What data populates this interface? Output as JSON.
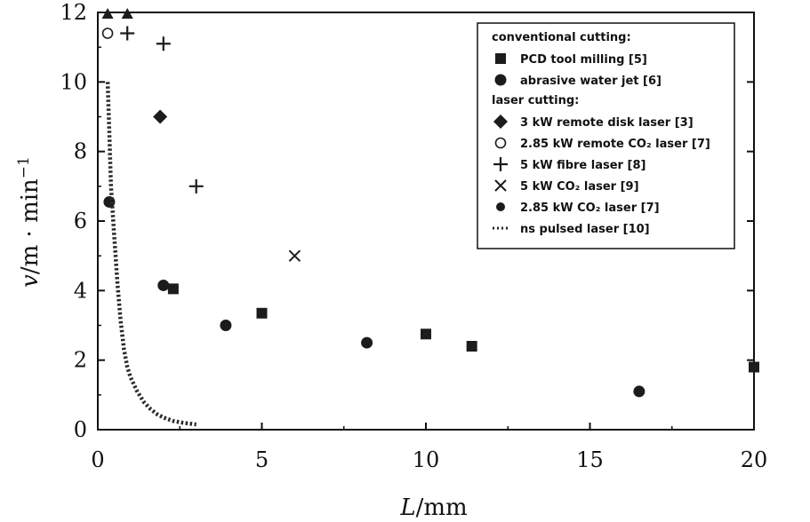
{
  "chart_data": {
    "type": "scatter",
    "xlabel_var": "L",
    "xlabel_unit": "/mm",
    "ylabel_var": "v",
    "ylabel_unit": "/m · min",
    "ylabel_exp": "−1",
    "xlim": [
      0,
      20
    ],
    "ylim": [
      0,
      12
    ],
    "x_ticks": [
      "0",
      "5",
      "10",
      "15",
      "20"
    ],
    "y_ticks": [
      "0",
      "2",
      "4",
      "6",
      "8",
      "10",
      "12"
    ],
    "grid": false,
    "legend_position": "top-right",
    "legend_groups": [
      {
        "heading": "conventional cutting:",
        "entries": [
          0,
          1
        ]
      },
      {
        "heading": "laser cutting:",
        "entries": [
          2,
          3,
          4,
          5,
          6,
          7
        ]
      }
    ],
    "series": [
      {
        "name": "PCD tool milling [5]",
        "marker": "square",
        "color": "#222222",
        "points": [
          [
            2.3,
            4.05
          ],
          [
            5.0,
            3.35
          ],
          [
            10.0,
            2.75
          ],
          [
            11.4,
            2.4
          ],
          [
            20.0,
            1.8
          ]
        ]
      },
      {
        "name": "abrasive water jet [6]",
        "marker": "circle",
        "color": "#222222",
        "points": [
          [
            0.35,
            6.55
          ],
          [
            2.0,
            4.15
          ],
          [
            3.9,
            3.0
          ],
          [
            8.2,
            2.5
          ],
          [
            16.5,
            1.1
          ]
        ]
      },
      {
        "name": "3 kW remote disk laser [3]",
        "marker": "diamond",
        "color": "#222222",
        "points": [
          [
            1.9,
            9.0
          ]
        ]
      },
      {
        "name": "2.85 kW remote CO₂ laser [7]",
        "marker": "open-circle",
        "color": "#222222",
        "points": [
          [
            0.3,
            11.4
          ]
        ]
      },
      {
        "name": "5 kW fibre laser [8]",
        "marker": "plus",
        "color": "#222222",
        "points": [
          [
            0.9,
            11.4
          ],
          [
            2.0,
            11.1
          ],
          [
            3.0,
            7.0
          ]
        ]
      },
      {
        "name": "5 kW CO₂ laser [9]",
        "marker": "cross",
        "color": "#222222",
        "points": [
          [
            6.0,
            5.0
          ]
        ]
      },
      {
        "name": "2.85 kW CO₂ laser [7]",
        "marker": "small-circle",
        "color": "#222222",
        "points": []
      },
      {
        "name": "ns pulsed laser [10]",
        "marker": "dotted-line",
        "color": "#333333",
        "points": [
          [
            0.3,
            10.0
          ],
          [
            0.35,
            8.6
          ],
          [
            0.4,
            7.0
          ],
          [
            0.5,
            5.6
          ],
          [
            0.6,
            4.2
          ],
          [
            0.7,
            3.1
          ],
          [
            0.8,
            2.3
          ],
          [
            0.9,
            1.8
          ],
          [
            1.0,
            1.5
          ],
          [
            1.2,
            1.1
          ],
          [
            1.4,
            0.8
          ],
          [
            1.6,
            0.6
          ],
          [
            1.8,
            0.45
          ],
          [
            2.0,
            0.35
          ],
          [
            2.3,
            0.25
          ],
          [
            2.6,
            0.2
          ],
          [
            3.0,
            0.15
          ]
        ]
      }
    ],
    "extra_markers": [
      {
        "marker": "triangle",
        "points": [
          [
            0.3,
            11.95
          ],
          [
            0.9,
            11.95
          ]
        ]
      }
    ]
  }
}
